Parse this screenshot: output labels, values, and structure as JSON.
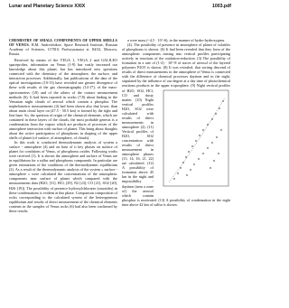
{
  "header": {
    "left": "Lunar and Planetary Science XXIX",
    "right": "1003.pdf"
  },
  "title": "CHEMISTRY OF SMALL COMPONENTS OF UPPER SHELLS OF VENUS.",
  "authors": "B.M. Andreichikov, Space Research Institute, Russian Academy of Sciences, 117810, Profsoyuznaya st. 84/32, Moscow, Russia.",
  "left_column": [
    "Received by means of the VEGA 1, VEGA 2 and GALILEO spaceprobes, information on Venus (1-9) has vastly increased our knowledge about this planet, but has introduced new questions connected with the chemistry of the atmosphere, the surface, and interaction processes. Additionally, last publications of the data of the optical investigations (10-13) have revealed one greater divergence of these with results of the gas chromatography (14-17), of the mass-spectrometers (18) and of the others of the contact measurement methods (6). It had been reported in works (7,8) about finding in the Venusian night clouds of aerosol which contain a phosphor. The nephelometric measurements (4) had been shown also that lower, than about main cloud layer on (47.5 - 50.5 km) is formed by the tight and fine haze. So, the question of origin of the chemical elements, which are contained in these layers of the clouds, the most probable genesis is a condensation from the vapors which are products of processes of the atmosphere interaction with surface of planet. This bring about thoughts about the active participation of phosphorus in shaping of the upper shells of planet (of surface, of atmosphere, of clouds).",
    "In this work is conducted thermodynamic analysis of system a surface - atmosphere (4) and on base of it key phases on surface of planet for conditions of Venus, of phosphorus oxides. Following works were received (1). It is shown the atmosphere and surface of Venus are in equilibrium for a sulfur and phosphorus compounds. In particular are given estimations of the conditions of the thermodynamic equilibrium (2). As a result of the thermodynamic analysis of the system « surface - atmosphere » were calculated the concentrations of the atmospheric components near surface of planet which compared with the measurements data (H2O, [31], HCl, [29], N2 [23], CO [21], SO2 [20], H2S [19]). The possibility of presence hydroxylchlorates (zawaides) in these condensations is evident at this phase. Comparison composition of rocks corresponding to the calculated system of the heterogeneous equilibrium and results of direct measurement of the chemical elements contents in the samples of Venus rocks (6) had also been confirmed by these results."
  ],
  "right_column": [
    "a were mass (~4,5 · 10^-6), in the manner of hydro-hydroxygens.",
    "(4). The possibility of presence in atmosphere of planet of volatiles of phosphorus is shown. (6) It had been revealed that they form of the atmospheric components mixing into vertical profiles participating actively in reactions of the oxidation-reduction. (3) The possibility of formation in a rate of (1-2) · 10^-8 of traces of aerosol of the layered polymers P2O5 is shown. (8) It was revealed, that sorting descend of results of direct measurements in the atmosphere of Venus is connected with the difference of chemical processes daytime and in the night, stipulated by the influence of our degree at a day time of photochemical reactions products in the upper troposphere. (9) Night vertical profiles of H2O, SO2, HCl, CO and dusty matter. (10) Night vertical profiles H2O, SO2 were calculated with results of direct measurements in atmosphere (2). (11) Vertical profiles of H2O, SO2 concentration with results of direct measurement in atmosphere phases (15, 14, 16, 21, 22) are calculated. (12) A possibility of formation above 45 km in the night and impossibility - daytime (near a zone of) the aerosol which contain phosphor is motivated. (13) A possibility of condensation in the night time above 42 km of sulfur is shown."
  ]
}
